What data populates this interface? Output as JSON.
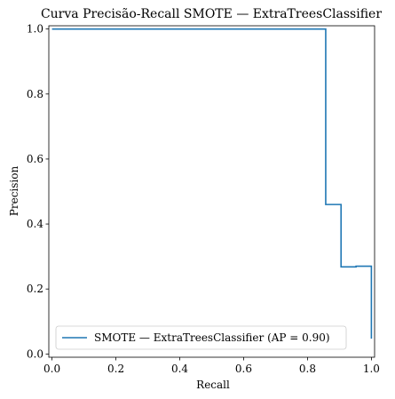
{
  "colors": {
    "series": "#1f77b4",
    "axis": "#000000",
    "legend_border": "#cccccc",
    "background": "#ffffff"
  },
  "chart_data": {
    "type": "line",
    "title": "Curva Precisão-Recall SMOTE — ExtraTreesClassifier",
    "xlabel": "Recall",
    "ylabel": "Precision",
    "xlim": [
      -0.01,
      1.01
    ],
    "ylim": [
      -0.01,
      1.01
    ],
    "xticks": [
      0.0,
      0.2,
      0.4,
      0.6,
      0.8,
      1.0
    ],
    "yticks": [
      0.0,
      0.2,
      0.4,
      0.6,
      0.8,
      1.0
    ],
    "xtick_labels": [
      "0.0",
      "0.2",
      "0.4",
      "0.6",
      "0.8",
      "1.0"
    ],
    "ytick_labels": [
      "0.0",
      "0.2",
      "0.4",
      "0.6",
      "0.8",
      "1.0"
    ],
    "grid": false,
    "legend_position": "lower-left",
    "series": [
      {
        "name": "SMOTE — ExtraTreesClassifier (AP = 0.90)",
        "drawstyle": "steps-post",
        "recall": [
          1.0,
          1.0,
          0.952,
          0.952,
          0.905,
          0.905,
          0.857,
          0.857,
          0.0
        ],
        "precision": [
          0.047,
          0.27,
          0.27,
          0.268,
          0.268,
          0.46,
          0.46,
          1.0,
          1.0
        ]
      }
    ]
  }
}
